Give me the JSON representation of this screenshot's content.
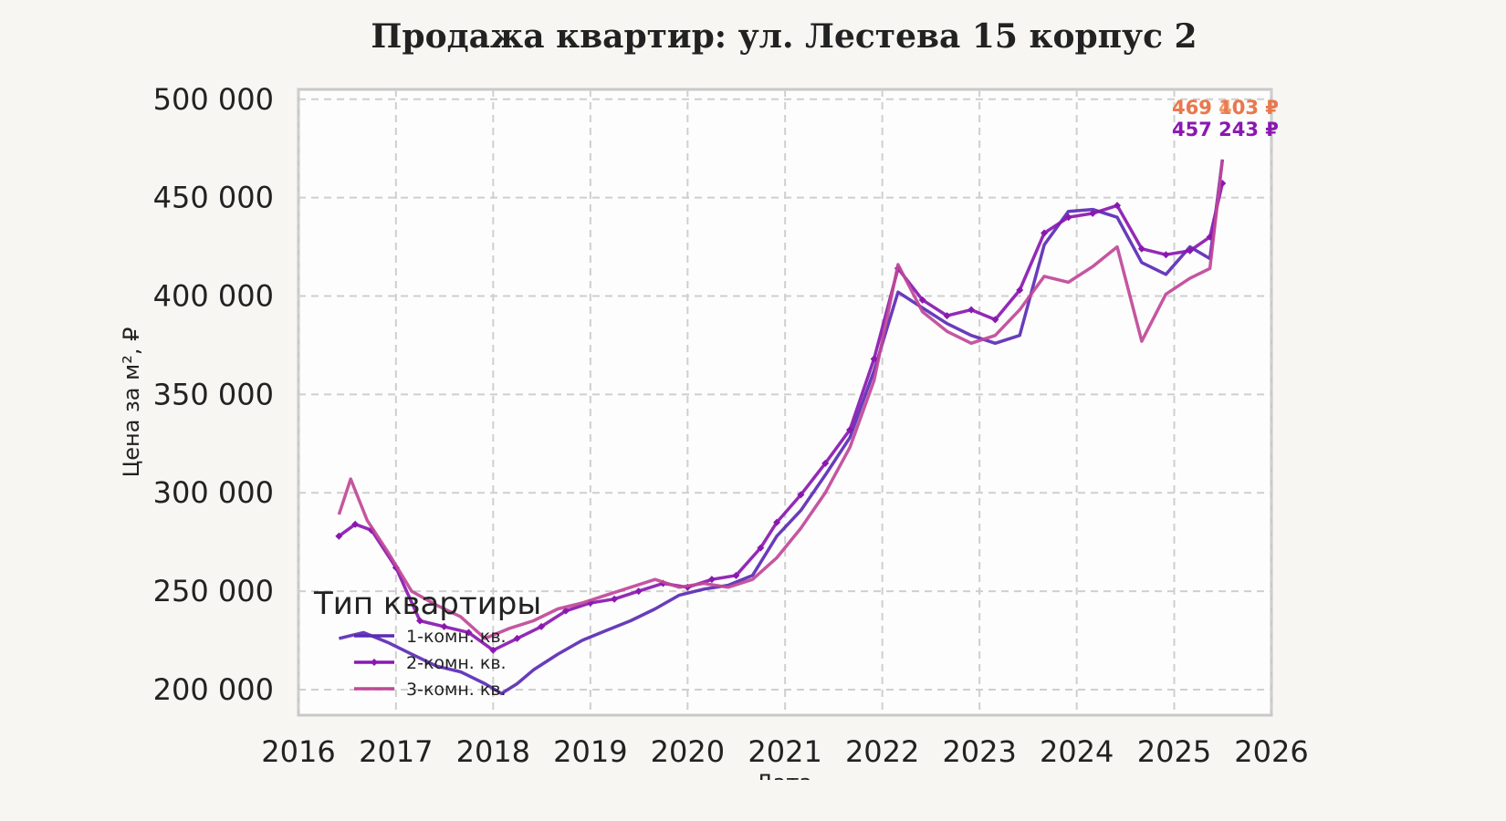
{
  "chart_data": {
    "type": "line",
    "title": "Продажа квартир: ул. Лестева 15 корпус 2",
    "xlabel": "Дата",
    "ylabel": "Цена за м², ₽",
    "xlim": [
      "2016-01-01",
      "2026-01-01"
    ],
    "ylim": [
      187000,
      505000
    ],
    "x_ticks": [
      "2016",
      "2017",
      "2018",
      "2019",
      "2020",
      "2021",
      "2022",
      "2023",
      "2024",
      "2025",
      "2026"
    ],
    "y_ticks": [
      {
        "value": 200000,
        "label": "200 000"
      },
      {
        "value": 250000,
        "label": "250 000"
      },
      {
        "value": 300000,
        "label": "300 000"
      },
      {
        "value": 350000,
        "label": "350 000"
      },
      {
        "value": 400000,
        "label": "400 000"
      },
      {
        "value": 450000,
        "label": "450 000"
      },
      {
        "value": 500000,
        "label": "500 000"
      }
    ],
    "grid": true,
    "legend": {
      "title": "Тип квартиры",
      "placement": "bottom-left"
    },
    "series": [
      {
        "name": "1-комн. кв.",
        "color": "#5b2bb5",
        "marker": "none",
        "points": [
          [
            "2016-06-01",
            226000
          ],
          [
            "2016-09-01",
            229000
          ],
          [
            "2016-12-01",
            224000
          ],
          [
            "2017-03-01",
            218000
          ],
          [
            "2017-06-01",
            212000
          ],
          [
            "2017-09-01",
            209000
          ],
          [
            "2017-12-01",
            203000
          ],
          [
            "2018-02-01",
            198000
          ],
          [
            "2018-04-01",
            203000
          ],
          [
            "2018-06-01",
            210000
          ],
          [
            "2018-09-01",
            218000
          ],
          [
            "2018-12-01",
            225000
          ],
          [
            "2019-03-01",
            230000
          ],
          [
            "2019-06-01",
            235000
          ],
          [
            "2019-09-01",
            241000
          ],
          [
            "2019-12-01",
            248000
          ],
          [
            "2020-03-01",
            251000
          ],
          [
            "2020-06-01",
            253000
          ],
          [
            "2020-09-01",
            258000
          ],
          [
            "2020-12-01",
            278000
          ],
          [
            "2021-03-01",
            291000
          ],
          [
            "2021-06-01",
            309000
          ],
          [
            "2021-09-01",
            328000
          ],
          [
            "2021-12-01",
            362000
          ],
          [
            "2022-03-01",
            402000
          ],
          [
            "2022-06-01",
            394000
          ],
          [
            "2022-09-01",
            386000
          ],
          [
            "2022-12-01",
            380000
          ],
          [
            "2023-03-01",
            376000
          ],
          [
            "2023-06-01",
            380000
          ],
          [
            "2023-09-01",
            426000
          ],
          [
            "2023-12-01",
            443000
          ],
          [
            "2024-03-01",
            444000
          ],
          [
            "2024-06-01",
            440000
          ],
          [
            "2024-09-01",
            417000
          ],
          [
            "2024-12-01",
            411000
          ],
          [
            "2025-03-01",
            425000
          ],
          [
            "2025-05-15",
            419000
          ],
          [
            "2025-07-01",
            469403
          ]
        ]
      },
      {
        "name": "2-комн. кв.",
        "color": "#8a18b0",
        "marker": "diamond",
        "points": [
          [
            "2016-06-01",
            278000
          ],
          [
            "2016-08-01",
            284000
          ],
          [
            "2016-10-01",
            281000
          ],
          [
            "2017-01-01",
            262000
          ],
          [
            "2017-04-01",
            235000
          ],
          [
            "2017-07-01",
            232000
          ],
          [
            "2017-10-01",
            229000
          ],
          [
            "2018-01-01",
            220000
          ],
          [
            "2018-04-01",
            226000
          ],
          [
            "2018-07-01",
            232000
          ],
          [
            "2018-10-01",
            240000
          ],
          [
            "2019-01-01",
            244000
          ],
          [
            "2019-04-01",
            246000
          ],
          [
            "2019-07-01",
            250000
          ],
          [
            "2019-10-01",
            254000
          ],
          [
            "2020-01-01",
            252000
          ],
          [
            "2020-04-01",
            256000
          ],
          [
            "2020-07-01",
            258000
          ],
          [
            "2020-10-01",
            272000
          ],
          [
            "2020-12-01",
            285000
          ],
          [
            "2021-03-01",
            299000
          ],
          [
            "2021-06-01",
            315000
          ],
          [
            "2021-09-01",
            332000
          ],
          [
            "2021-12-01",
            368000
          ],
          [
            "2022-03-01",
            414000
          ],
          [
            "2022-06-01",
            398000
          ],
          [
            "2022-09-01",
            390000
          ],
          [
            "2022-12-01",
            393000
          ],
          [
            "2023-03-01",
            388000
          ],
          [
            "2023-06-01",
            403000
          ],
          [
            "2023-09-01",
            432000
          ],
          [
            "2023-12-01",
            440000
          ],
          [
            "2024-03-01",
            442000
          ],
          [
            "2024-06-01",
            446000
          ],
          [
            "2024-09-01",
            424000
          ],
          [
            "2024-12-01",
            421000
          ],
          [
            "2025-03-01",
            423000
          ],
          [
            "2025-05-15",
            430000
          ],
          [
            "2025-07-01",
            457243
          ]
        ]
      },
      {
        "name": "3-комн. кв.",
        "color": "#c04898",
        "marker": "none",
        "points": [
          [
            "2016-06-01",
            289000
          ],
          [
            "2016-07-15",
            307000
          ],
          [
            "2016-09-15",
            286000
          ],
          [
            "2016-12-01",
            270000
          ],
          [
            "2017-03-01",
            250000
          ],
          [
            "2017-06-01",
            243000
          ],
          [
            "2017-09-01",
            237000
          ],
          [
            "2017-12-01",
            226000
          ],
          [
            "2018-03-01",
            231000
          ],
          [
            "2018-06-01",
            235000
          ],
          [
            "2018-09-01",
            241000
          ],
          [
            "2018-12-01",
            244000
          ],
          [
            "2019-03-01",
            248000
          ],
          [
            "2019-06-01",
            252000
          ],
          [
            "2019-09-01",
            256000
          ],
          [
            "2019-12-01",
            252000
          ],
          [
            "2020-03-01",
            254000
          ],
          [
            "2020-06-01",
            252000
          ],
          [
            "2020-09-01",
            256000
          ],
          [
            "2020-12-01",
            267000
          ],
          [
            "2021-03-01",
            282000
          ],
          [
            "2021-06-01",
            300000
          ],
          [
            "2021-09-01",
            323000
          ],
          [
            "2021-12-01",
            357000
          ],
          [
            "2022-03-01",
            416000
          ],
          [
            "2022-06-01",
            392000
          ],
          [
            "2022-09-01",
            382000
          ],
          [
            "2022-12-01",
            376000
          ],
          [
            "2023-03-01",
            380000
          ],
          [
            "2023-06-01",
            393000
          ],
          [
            "2023-09-01",
            410000
          ],
          [
            "2023-12-01",
            407000
          ],
          [
            "2024-03-01",
            415000
          ],
          [
            "2024-06-01",
            425000
          ],
          [
            "2024-09-01",
            377000
          ],
          [
            "2024-12-01",
            401000
          ],
          [
            "2025-03-01",
            409000
          ],
          [
            "2025-05-15",
            414000
          ],
          [
            "2025-07-01",
            469103
          ]
        ]
      }
    ],
    "end_labels": [
      {
        "text": "469 403 ₽",
        "color": "#f08a4b"
      },
      {
        "text": "469 103 ₽",
        "color": "#e8724a"
      },
      {
        "text": "457 243 ₽",
        "color": "#8a18b0"
      }
    ]
  }
}
